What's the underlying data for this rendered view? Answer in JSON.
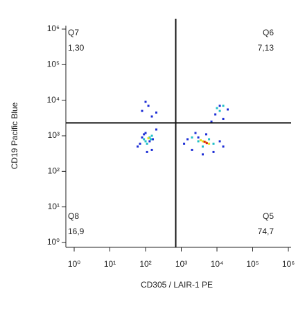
{
  "chart_data": {
    "type": "scatter",
    "log_x": true,
    "log_y": true,
    "x_label": "CD305 / LAIR-1 PE",
    "y_label": "CD19 Pacific Blue",
    "xlim": [
      1,
      1000000
    ],
    "ylim": [
      1,
      1000000
    ],
    "xticks": [
      {
        "value": 1,
        "label": "10⁰"
      },
      {
        "value": 10,
        "label": "10¹"
      },
      {
        "value": 100,
        "label": "10²"
      },
      {
        "value": 1000,
        "label": "10³"
      },
      {
        "value": 10000,
        "label": "10⁴"
      },
      {
        "value": 100000,
        "label": "10⁵"
      },
      {
        "value": 1000000,
        "label": "10⁶"
      }
    ],
    "yticks": [
      {
        "value": 1,
        "label": "10⁰"
      },
      {
        "value": 10,
        "label": "10¹"
      },
      {
        "value": 100,
        "label": "10²"
      },
      {
        "value": 1000,
        "label": "10³"
      },
      {
        "value": 10000,
        "label": "10⁴"
      },
      {
        "value": 100000,
        "label": "10⁵"
      },
      {
        "value": 1000000,
        "label": "10⁶"
      }
    ],
    "gate_x": 700,
    "gate_y": 2300,
    "quadrants": [
      {
        "name": "Q7",
        "value": 1.3,
        "value_label": "1,30",
        "corner": "top-left"
      },
      {
        "name": "Q6",
        "value": 7.13,
        "value_label": "7,13",
        "corner": "top-right"
      },
      {
        "name": "Q8",
        "value": 16.9,
        "value_label": "16,9",
        "corner": "bottom-left"
      },
      {
        "name": "Q5",
        "value": 74.7,
        "value_label": "74,7",
        "corner": "bottom-right"
      }
    ],
    "series": [
      {
        "color": "#1e2fd6",
        "x": [
          60,
          80,
          100,
          130,
          150,
          200,
          90,
          70,
          110,
          160,
          1200,
          2000,
          3000,
          5000,
          8000,
          12000,
          15000,
          4000,
          2500,
          1500,
          9000,
          12000,
          15000,
          20000,
          7000,
          80,
          120,
          150,
          200,
          100
        ],
        "y": [
          500,
          900,
          1200,
          700,
          400,
          1500,
          1100,
          600,
          350,
          800,
          600,
          400,
          900,
          1100,
          350,
          700,
          500,
          300,
          1200,
          800,
          4000,
          7000,
          3000,
          5500,
          2500,
          5000,
          7000,
          3500,
          4500,
          9000
        ]
      },
      {
        "color": "#22c0c8",
        "x": [
          100,
          130,
          150,
          90,
          110,
          3000,
          4000,
          6000,
          2000,
          8000,
          10000,
          15000,
          12000,
          140
        ],
        "y": [
          700,
          900,
          1000,
          800,
          600,
          700,
          500,
          800,
          900,
          600,
          6000,
          7000,
          5000,
          800
        ]
      },
      {
        "color": "#e6e020",
        "x": [
          4000,
          5000,
          3500,
          6000,
          120
        ],
        "y": [
          700,
          650,
          750,
          600,
          850
        ]
      },
      {
        "color": "#e02010",
        "x": [
          4500,
          5200
        ],
        "y": [
          680,
          620
        ]
      }
    ]
  }
}
